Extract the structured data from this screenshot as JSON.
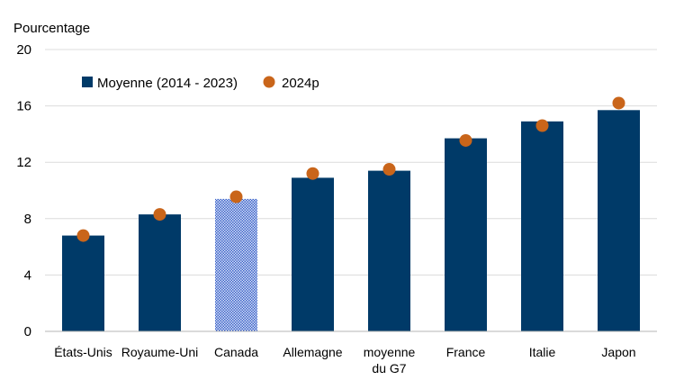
{
  "chart_data": {
    "type": "bar",
    "ylabel": "Pourcentage",
    "xlabel": "",
    "ylim": [
      0,
      20
    ],
    "yticks": [
      "0",
      "4",
      "8",
      "12",
      "16",
      "20"
    ],
    "grid": true,
    "legend_position": "top-left",
    "categories": [
      [
        "États-Unis"
      ],
      [
        "Royaume-Uni"
      ],
      [
        "Canada"
      ],
      [
        "Allemagne"
      ],
      [
        "moyenne",
        "du G7"
      ],
      [
        "France"
      ],
      [
        "Italie"
      ],
      [
        "Japon"
      ]
    ],
    "series": [
      {
        "name": "Moyenne (2014 - 2023)",
        "kind": "bar",
        "color": "#003a68",
        "highlight_index": 2,
        "highlight_color": "#4a6fd0",
        "values": [
          6.8,
          8.3,
          9.4,
          10.9,
          11.4,
          13.7,
          14.9,
          15.7
        ]
      },
      {
        "name": "2024p",
        "kind": "point",
        "color": "#c9651a",
        "values": [
          6.8,
          8.3,
          9.55,
          11.2,
          11.5,
          13.55,
          14.6,
          16.2
        ]
      }
    ]
  }
}
